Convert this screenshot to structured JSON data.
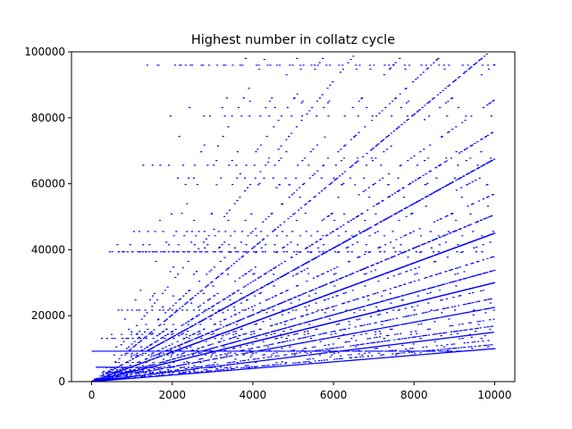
{
  "chart_data": {
    "type": "scatter",
    "title": "Highest number in collatz cycle",
    "xlabel": "",
    "ylabel": "",
    "xlim": [
      -500,
      10500
    ],
    "ylim": [
      0,
      100000
    ],
    "x_ticks": [
      0,
      2000,
      4000,
      6000,
      8000,
      10000
    ],
    "y_ticks": [
      0,
      20000,
      40000,
      60000,
      80000,
      100000
    ],
    "x_tick_labels": [
      "0",
      "2000",
      "4000",
      "6000",
      "8000",
      "10000"
    ],
    "y_tick_labels": [
      "0",
      "20000",
      "40000",
      "60000",
      "80000",
      "100000"
    ],
    "grid": false,
    "legend": "none",
    "marker_color": "#0000ff",
    "n_range": [
      1,
      10000
    ],
    "series": [
      {
        "values_description_points": [
          [
            1,
            4
          ],
          [
            100,
            9232
          ],
          [
            500,
            9232
          ],
          [
            1000,
            9232
          ],
          [
            2000,
            9232
          ],
          [
            3000,
            9232
          ],
          [
            1000,
            3000
          ],
          [
            2000,
            6000
          ],
          [
            4000,
            12000
          ],
          [
            6000,
            18000
          ],
          [
            8000,
            24000
          ],
          [
            10000,
            30000
          ],
          [
            1000,
            1000
          ],
          [
            4000,
            4000
          ],
          [
            8000,
            8000
          ],
          [
            10000,
            10000
          ],
          [
            2000,
            9000
          ],
          [
            6000,
            27000
          ],
          [
            10000,
            45000
          ],
          [
            3000,
            20250
          ],
          [
            10000,
            67500
          ],
          [
            500,
            39364
          ],
          [
            3000,
            39364
          ],
          [
            6000,
            39364
          ],
          [
            1500,
            95956
          ],
          [
            5000,
            95956
          ],
          [
            9000,
            95956
          ]
        ]
      }
    ]
  }
}
